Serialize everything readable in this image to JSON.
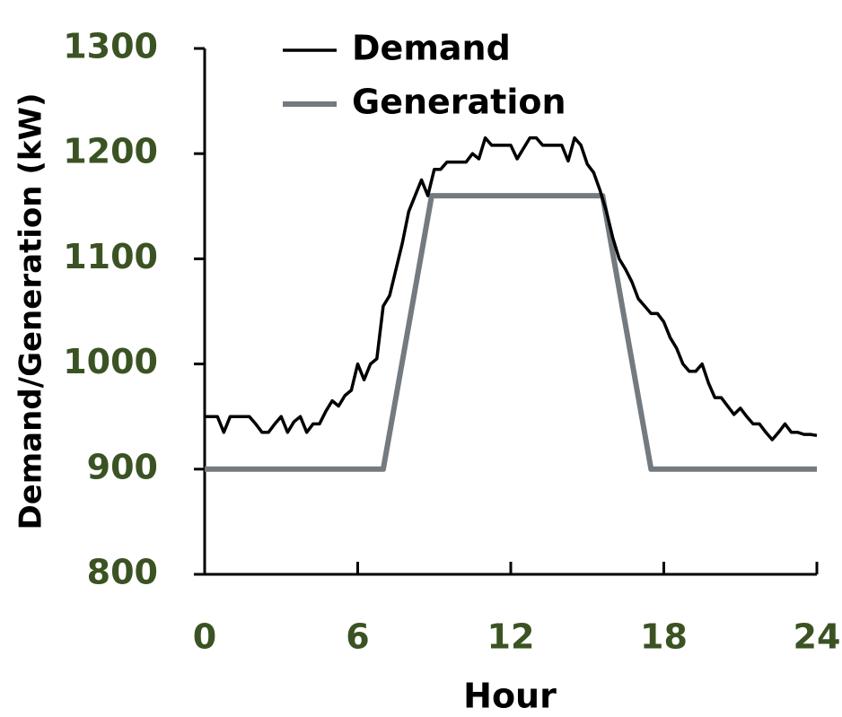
{
  "chart_data": {
    "type": "line",
    "xlabel": "Hour",
    "ylabel": "Demand/Generation (kW)",
    "xlim": [
      0,
      24
    ],
    "xticks": [
      0,
      6,
      12,
      18,
      24
    ],
    "ylim": [
      800,
      1300
    ],
    "yticks": [
      800,
      900,
      1000,
      1100,
      1200,
      1300
    ],
    "legend": "upper left",
    "series": [
      {
        "name": "Demand",
        "color": "#000000",
        "x": [
          0,
          0.25,
          0.5,
          0.75,
          1,
          1.25,
          1.5,
          1.75,
          2,
          2.25,
          2.5,
          2.75,
          3,
          3.25,
          3.5,
          3.75,
          4,
          4.25,
          4.5,
          4.75,
          5,
          5.25,
          5.5,
          5.75,
          6,
          6.25,
          6.5,
          6.75,
          7,
          7.25,
          7.5,
          7.75,
          8,
          8.25,
          8.5,
          8.75,
          9,
          9.25,
          9.5,
          9.75,
          10,
          10.25,
          10.5,
          10.75,
          11,
          11.25,
          11.5,
          11.75,
          12,
          12.25,
          12.5,
          12.75,
          13,
          13.25,
          13.5,
          13.75,
          14,
          14.25,
          14.5,
          14.75,
          15,
          15.25,
          15.5,
          15.75,
          16,
          16.25,
          16.5,
          16.75,
          17,
          17.25,
          17.5,
          17.75,
          18,
          18.25,
          18.5,
          18.75,
          19,
          19.25,
          19.5,
          19.75,
          20,
          20.25,
          20.5,
          20.75,
          21,
          21.25,
          21.5,
          21.75,
          22,
          22.25,
          22.5,
          22.75,
          23,
          23.25,
          23.5,
          23.75,
          24
        ],
        "values": [
          950,
          950,
          950,
          935,
          950,
          950,
          950,
          950,
          943,
          935,
          935,
          943,
          950,
          935,
          945,
          950,
          935,
          943,
          943,
          955,
          965,
          960,
          970,
          975,
          1000,
          985,
          1000,
          1005,
          1055,
          1065,
          1090,
          1115,
          1145,
          1160,
          1175,
          1160,
          1185,
          1185,
          1192,
          1192,
          1192,
          1192,
          1200,
          1195,
          1215,
          1208,
          1208,
          1208,
          1208,
          1195,
          1205,
          1215,
          1215,
          1208,
          1208,
          1208,
          1208,
          1193,
          1215,
          1208,
          1190,
          1182,
          1165,
          1145,
          1120,
          1100,
          1090,
          1078,
          1062,
          1055,
          1048,
          1048,
          1040,
          1025,
          1015,
          1000,
          993,
          993,
          1000,
          982,
          968,
          968,
          960,
          952,
          958,
          950,
          943,
          943,
          935,
          928,
          935,
          943,
          935,
          935,
          933,
          933,
          932
        ]
      },
      {
        "name": "Generation",
        "color": "#737a80",
        "x": [
          0,
          7,
          8.9,
          15.6,
          17.5,
          24
        ],
        "values": [
          900,
          900,
          1160,
          1160,
          900,
          900
        ]
      }
    ]
  }
}
